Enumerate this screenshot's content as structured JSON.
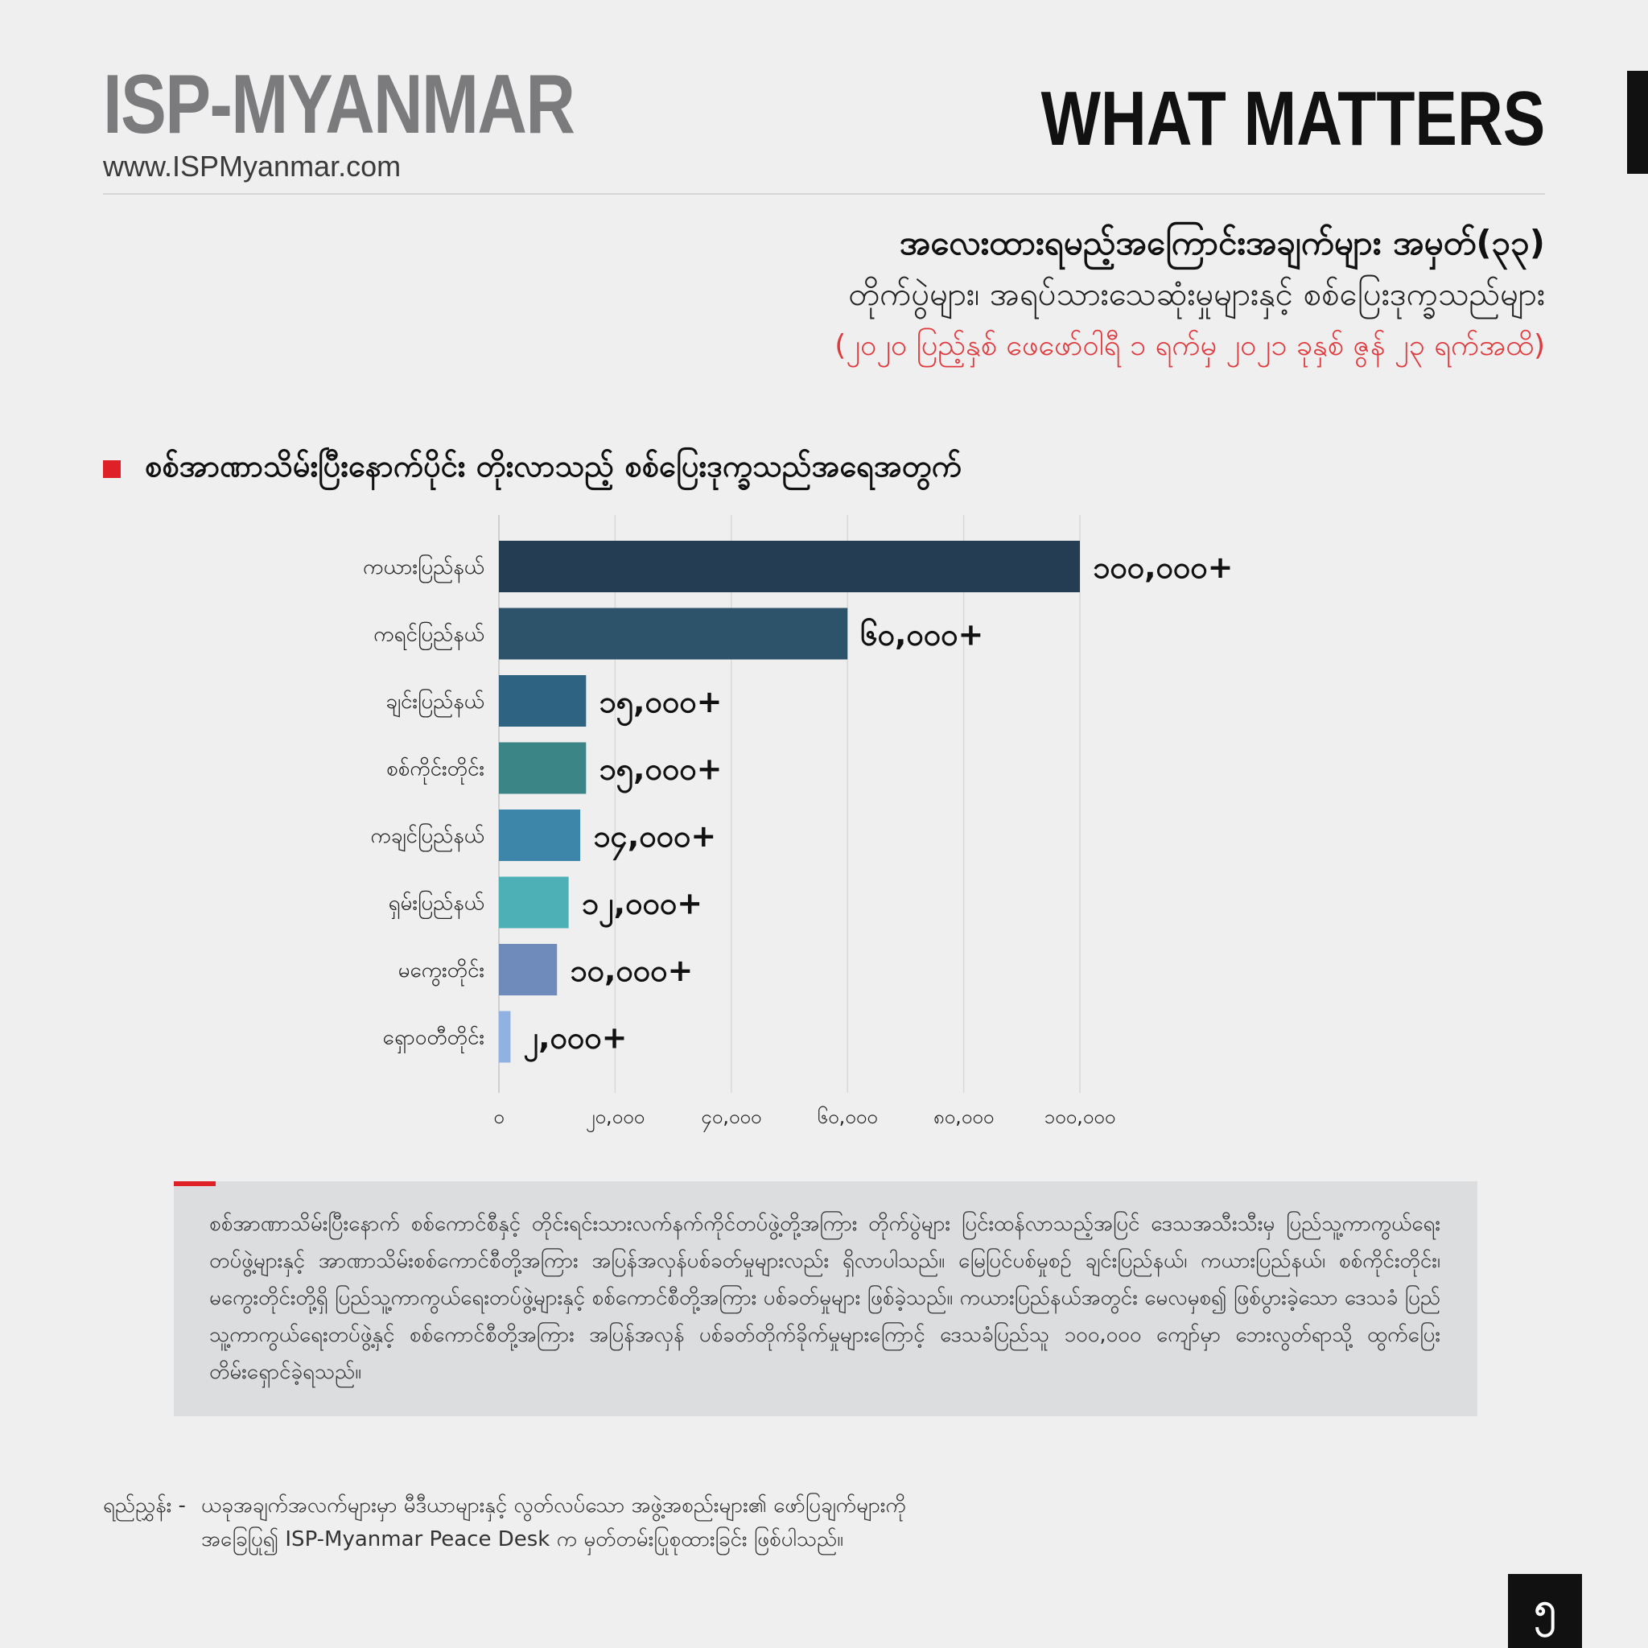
{
  "header": {
    "brand": "ISP-MYANMAR",
    "url": "www.ISPMyanmar.com",
    "series_label": "WHAT MATTERS"
  },
  "title": {
    "line1": "အလေးထားရမည့်အကြောင်းအချက်များ အမှတ်(၃၃)",
    "line2": "တိုက်ပွဲများ၊ အရပ်သားသေဆုံးမှုများနှင့် စစ်ပြေးဒုက္ခသည်များ",
    "line3": "(၂၀၂၀ ပြည့်နှစ် ဖေဖော်ဝါရီ ၁ ရက်မှ ၂၀၂၁ ခုနှစ် ဇွန် ၂၃ ရက်အထိ)"
  },
  "section": {
    "title": "စစ်အာဏာသိမ်းပြီးနောက်ပိုင်း တိုးလာသည့် စစ်ပြေးဒုက္ခသည်အရေအတွက်"
  },
  "chart_data": {
    "type": "bar",
    "orientation": "horizontal",
    "categories": [
      "ကယားပြည်နယ်",
      "ကရင်ပြည်နယ်",
      "ချင်းပြည်နယ်",
      "စစ်ကိုင်းတိုင်း",
      "ကချင်ပြည်နယ်",
      "ရှမ်းပြည်နယ်",
      "မကွေးတိုင်း",
      "ရှောဝတီတိုင်း"
    ],
    "values": [
      100000,
      60000,
      15000,
      15000,
      14000,
      12000,
      10000,
      2000
    ],
    "value_labels": [
      "၁၀၀,၀၀၀+",
      "၆၀,၀၀၀+",
      "၁၅,၀၀၀+",
      "၁၅,၀၀၀+",
      "၁၄,၀၀၀+",
      "၁၂,၀၀၀+",
      "၁၀,၀၀၀+",
      "၂,၀၀၀+"
    ],
    "colors": [
      "#243d52",
      "#2d536b",
      "#2e6382",
      "#3b8587",
      "#3d86a9",
      "#4eb0b7",
      "#6e8bbc",
      "#8fb2e2"
    ],
    "xlim": [
      0,
      100000
    ],
    "xticks": [
      0,
      20000,
      40000,
      60000,
      80000,
      100000
    ],
    "xtick_labels": [
      "၀",
      "၂၀,၀၀၀",
      "၄၀,၀၀၀",
      "၆၀,၀၀၀",
      "၈၀,၀၀၀",
      "၁၀၀,၀၀၀"
    ],
    "grid": true
  },
  "note": {
    "text": "စစ်အာဏာသိမ်းပြီးနောက် စစ်ကောင်စီနှင့် တိုင်းရင်းသားလက်နက်ကိုင်တပ်ဖွဲ့တို့အကြား တိုက်ပွဲများ ပြင်းထန်လာသည့်အပြင် ဒေသအသီးသီးမှ ပြည်သူ့ကာကွယ်ရေးတပ်ဖွဲ့များနှင့် အာဏာသိမ်းစစ်ကောင်စီတို့အကြား အပြန်အလှန်ပစ်ခတ်မှုများလည်း ရှိလာပါသည်။ မြေပြင်ပစ်မှုစဉ် ချင်းပြည်နယ်၊ ကယားပြည်နယ်၊ စစ်ကိုင်းတိုင်း၊ မကွေးတိုင်းတို့ရှိ ပြည်သူ့ကာကွယ်ရေးတပ်ဖွဲ့များနှင့် စစ်ကောင်စီတို့အကြား ပစ်ခတ်မှုများ ဖြစ်ခဲ့သည်။ ကယားပြည်နယ်အတွင်း မေလမှစ၍ ဖြစ်ပွားခဲ့သော ဒေသခံ ပြည်သူ့ကာကွယ်ရေးတပ်ဖွဲ့နှင့် စစ်ကောင်စီတို့အကြား အပြန်အလှန် ပစ်ခတ်တိုက်ခိုက်မှုများကြောင့် ဒေသခံပြည်သူ ၁၀၀,၀၀၀ ကျော်မှာ ဘေးလွတ်ရာသို့ ထွက်ပြေးတိမ်းရှောင်ခဲ့ရသည်။"
  },
  "source": {
    "label": "ရည်ညွှန်း -",
    "line1": "ယခုအချက်အလက်များမှာ မီဒီယာများနှင့် လွတ်လပ်သော အဖွဲ့အစည်းများ၏ ဖော်ပြချက်များကို",
    "line2": "အခြေပြု၍ ISP-Myanmar Peace Desk က မှတ်တမ်းပြုစုထားခြင်း ဖြစ်ပါသည်။"
  },
  "page": {
    "number": "၅"
  }
}
